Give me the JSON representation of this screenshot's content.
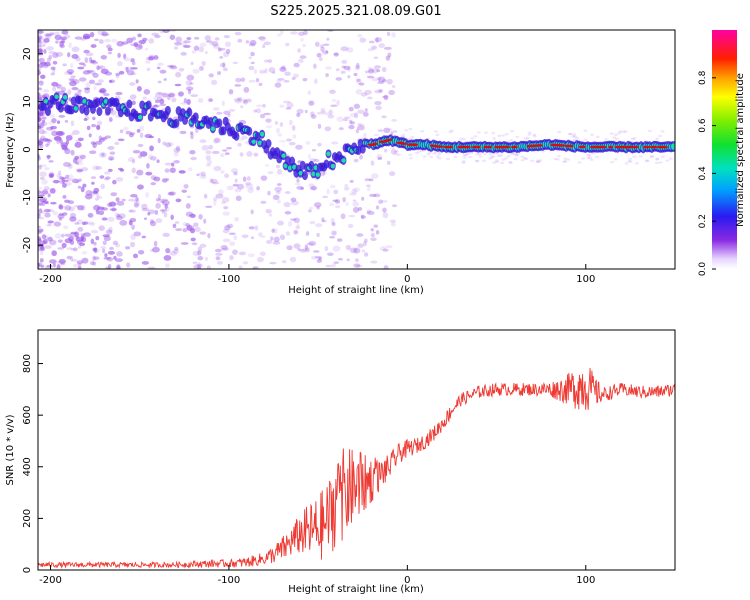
{
  "figure": {
    "title": "S225.2025.321.08.09.G01"
  },
  "colors": {
    "snr_line": "#ee3a33",
    "axis": "#000000",
    "ridge_core": "#d01010",
    "ridge_mid": "#19e0a8",
    "ridge_edge": "#3a1ad8",
    "scatter": "#9a55e8"
  },
  "chart_data": [
    {
      "type": "heatmap",
      "title": "S225.2025.321.08.09.G01",
      "xlabel": "Height of straight line (km)",
      "ylabel": "Frequency (Hz)",
      "xlim": [
        -207,
        150
      ],
      "ylim": [
        -25,
        25
      ],
      "xticks": [
        -200,
        -100,
        0,
        100
      ],
      "xtick_labels": [
        "-200",
        "-100",
        "0",
        "100"
      ],
      "yticks": [
        -20,
        -10,
        0,
        10,
        20
      ],
      "ytick_labels": [
        "-20",
        "-10",
        "0",
        "10",
        "20"
      ],
      "ridge": {
        "x": [
          -205,
          -195,
          -185,
          -175,
          -165,
          -155,
          -145,
          -135,
          -125,
          -115,
          -105,
          -95,
          -85,
          -80,
          -75,
          -70,
          -65,
          -60,
          -55,
          -50,
          -45,
          -40,
          -35,
          -30,
          -25,
          -20,
          -15,
          -10,
          -5,
          0,
          10,
          20,
          40,
          60,
          80,
          100,
          120,
          150
        ],
        "y": [
          9,
          10,
          9,
          8.5,
          9,
          8,
          8,
          7,
          6.5,
          6,
          5,
          4,
          3,
          1.5,
          -1,
          -2,
          -3.5,
          -4.5,
          -5,
          -4,
          -2,
          -3,
          -1,
          0,
          0.5,
          1,
          1.5,
          2,
          1.5,
          1,
          1,
          0.5,
          0.5,
          0.5,
          1,
          0.5,
          0.5,
          0.5
        ],
        "core_start_x": -20
      },
      "colorbar": {
        "label": "Normalized spectral amplitude",
        "range": [
          0,
          1
        ],
        "ticks": [
          0,
          0.2,
          0.4,
          0.6,
          0.8
        ],
        "tick_labels": [
          "0.0",
          "0.2",
          "0.4",
          "0.6",
          "0.8"
        ]
      }
    },
    {
      "type": "line",
      "title": "",
      "xlabel": "Height of straight line (km)",
      "ylabel": "SNR (10 * v/v)",
      "xlim": [
        -207,
        150
      ],
      "ylim": [
        0,
        930
      ],
      "xticks": [
        -200,
        -100,
        0,
        100
      ],
      "xtick_labels": [
        "-200",
        "-100",
        "0",
        "100"
      ],
      "yticks": [
        0,
        200,
        400,
        600,
        800
      ],
      "ytick_labels": [
        "0",
        "200",
        "400",
        "600",
        "800"
      ],
      "series": [
        {
          "name": "SNR",
          "x": [
            -207,
            -190,
            -170,
            -150,
            -130,
            -110,
            -100,
            -90,
            -80,
            -75,
            -70,
            -65,
            -60,
            -55,
            -50,
            -45,
            -40,
            -35,
            -30,
            -25,
            -20,
            -15,
            -10,
            -5,
            0,
            5,
            10,
            15,
            20,
            25,
            30,
            40,
            50,
            60,
            70,
            80,
            90,
            95,
            100,
            105,
            110,
            120,
            130,
            140,
            150
          ],
          "values": [
            20,
            20,
            20,
            20,
            20,
            25,
            25,
            30,
            45,
            60,
            80,
            110,
            140,
            150,
            160,
            190,
            260,
            300,
            320,
            330,
            350,
            370,
            400,
            450,
            470,
            480,
            500,
            530,
            570,
            620,
            660,
            690,
            700,
            700,
            700,
            700,
            700,
            710,
            720,
            690,
            680,
            700,
            690,
            690,
            700
          ],
          "noise": [
            10,
            10,
            10,
            10,
            10,
            15,
            15,
            20,
            25,
            35,
            50,
            60,
            80,
            110,
            130,
            150,
            170,
            180,
            150,
            120,
            90,
            60,
            50,
            40,
            35,
            30,
            30,
            30,
            30,
            30,
            25,
            25,
            25,
            25,
            25,
            30,
            60,
            90,
            110,
            60,
            30,
            25,
            25,
            25,
            25
          ]
        }
      ]
    }
  ]
}
